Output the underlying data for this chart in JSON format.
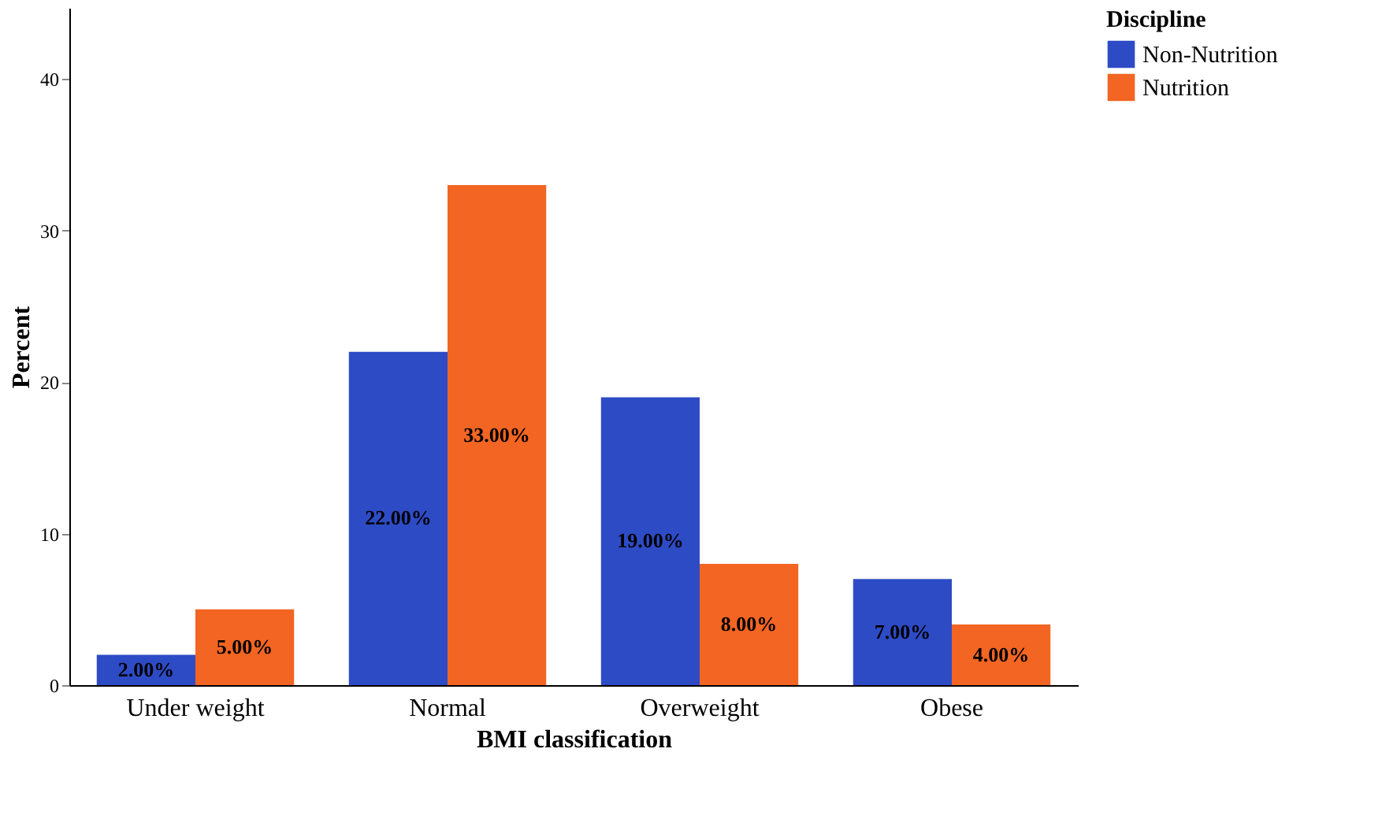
{
  "chart_data": {
    "type": "bar",
    "xlabel": "BMI classification",
    "ylabel": "Percent",
    "legend_title": "Discipline",
    "legend": "top right",
    "grid": false,
    "categories": [
      "Under weight",
      "Normal",
      "Overweight",
      "Obese"
    ],
    "series": [
      {
        "name": "Non-Nutrition",
        "color": "#2e4bc6",
        "values": [
          2,
          22,
          19,
          7
        ],
        "value_labels": [
          "2.00%",
          "22.00%",
          "19.00%",
          "7.00%"
        ]
      },
      {
        "name": "Nutrition",
        "color": "#f26522",
        "values": [
          5,
          33,
          8,
          4
        ],
        "value_labels": [
          "5.00%",
          "33.00%",
          "8.00%",
          "4.00%"
        ]
      }
    ],
    "ylim": [
      0,
      44.7
    ],
    "yticks": [
      0,
      10,
      20,
      30,
      40
    ]
  }
}
